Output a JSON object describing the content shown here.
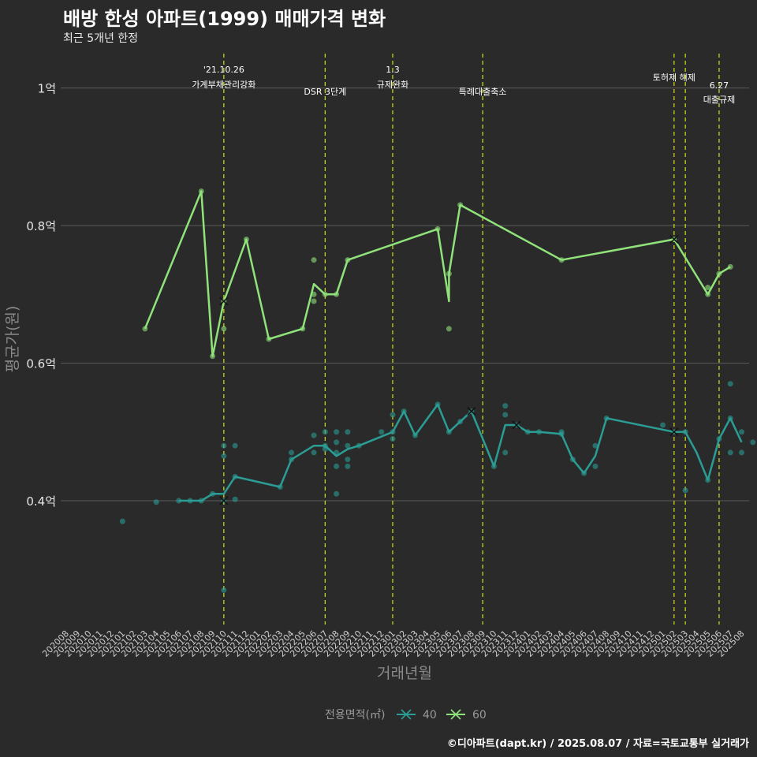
{
  "header": {
    "title": "배방 한성 아파트(1999) 매매가격 변화",
    "subtitle": "최근 5개년 한정"
  },
  "footer": {
    "caption": "©디아파트(dapt.kr) / 2025.08.07 / 자료=국토교통부 실거래가"
  },
  "colors": {
    "background": "#2b2a2b",
    "grid": "#5a5a5a",
    "event_line": "#d4e01a",
    "series_40": "#2a9d94",
    "series_60": "#8fe37a"
  },
  "chart_data": {
    "type": "line",
    "xlabel": "거래년월",
    "ylabel": "평균가(원)",
    "ylim": [
      0.22,
      1.05
    ],
    "grid": true,
    "legend_position": "bottom",
    "legend_title": "전용면적(㎡)",
    "y_ticks": [
      {
        "value": 0.4,
        "label": "0.4억"
      },
      {
        "value": 0.6,
        "label": "0.6억"
      },
      {
        "value": 0.8,
        "label": "0.8억"
      },
      {
        "value": 1.0,
        "label": "1억"
      }
    ],
    "x_start": "2020-08",
    "x_months": [
      "202008",
      "202009",
      "202010",
      "202011",
      "202012",
      "202101",
      "202102",
      "202103",
      "202104",
      "202105",
      "202106",
      "202107",
      "202108",
      "202109",
      "202110",
      "202111",
      "202112",
      "202201",
      "202202",
      "202203",
      "202204",
      "202205",
      "202206",
      "202207",
      "202208",
      "202209",
      "202210",
      "202211",
      "202212",
      "202301",
      "202302",
      "202303",
      "202304",
      "202305",
      "202306",
      "202307",
      "202308",
      "202309",
      "202310",
      "202311",
      "202312",
      "202401",
      "202402",
      "202403",
      "202404",
      "202405",
      "202406",
      "202407",
      "202408",
      "202409",
      "202410",
      "202411",
      "202412",
      "202501",
      "202502",
      "202503",
      "202504",
      "202505",
      "202506",
      "202507",
      "202508"
    ],
    "events": [
      {
        "month": "202110",
        "label": "'21.10.26\n가계부채관리강화",
        "level": 0
      },
      {
        "month": "202207",
        "label": "DSR 3단계",
        "level": 1
      },
      {
        "month": "202301",
        "label": "1.3\n규제완화",
        "level": 0
      },
      {
        "month": "202309",
        "label": "특례대출축소",
        "level": 1
      },
      {
        "month": "202502",
        "label": "토허제 해제",
        "level": 0
      },
      {
        "month": "202503",
        "label": "",
        "level": 0
      },
      {
        "month": "202506",
        "label": "6.27\n대출규제",
        "level": 2
      }
    ],
    "series": [
      {
        "name": "40",
        "color": "#2a9d94",
        "line": [
          [
            "202106",
            0.4
          ],
          [
            "202107",
            0.4
          ],
          [
            "202108",
            0.4
          ],
          [
            "202109",
            0.41
          ],
          [
            "202110",
            0.41
          ],
          [
            "202111",
            0.435
          ],
          [
            "202203",
            0.42
          ],
          [
            "202204",
            0.46
          ],
          [
            "202206",
            0.48
          ],
          [
            "202207",
            0.48
          ],
          [
            "202208",
            0.465
          ],
          [
            "202209",
            0.475
          ],
          [
            "202210",
            0.48
          ],
          [
            "202301",
            0.5
          ],
          [
            "202302",
            0.53
          ],
          [
            "202303",
            0.495
          ],
          [
            "202305",
            0.54
          ],
          [
            "202306",
            0.5
          ],
          [
            "202307",
            0.515
          ],
          [
            "202308",
            0.53
          ],
          [
            "202310",
            0.45
          ],
          [
            "202311",
            0.51
          ],
          [
            "202312",
            0.51
          ],
          [
            "202401",
            0.5
          ],
          [
            "202402",
            0.5
          ],
          [
            "202404",
            0.497
          ],
          [
            "202405",
            0.46
          ],
          [
            "202406",
            0.44
          ],
          [
            "202407",
            0.465
          ],
          [
            "202408",
            0.52
          ],
          [
            "202502",
            0.5
          ],
          [
            "202503",
            0.5
          ],
          [
            "202504",
            0.47
          ],
          [
            "202505",
            0.43
          ],
          [
            "202506",
            0.49
          ],
          [
            "202507",
            0.52
          ],
          [
            "202508",
            0.485
          ]
        ],
        "points": [
          [
            "202101",
            0.37
          ],
          [
            "202104",
            0.398
          ],
          [
            "202106",
            0.4
          ],
          [
            "202107",
            0.4
          ],
          [
            "202108",
            0.4
          ],
          [
            "202109",
            0.41
          ],
          [
            "202110",
            0.48
          ],
          [
            "202110",
            0.465
          ],
          [
            "202110",
            0.4
          ],
          [
            "202110",
            0.27
          ],
          [
            "202111",
            0.48
          ],
          [
            "202111",
            0.435
          ],
          [
            "202111",
            0.402
          ],
          [
            "202203",
            0.42
          ],
          [
            "202204",
            0.47
          ],
          [
            "202204",
            0.46
          ],
          [
            "202206",
            0.495
          ],
          [
            "202206",
            0.47
          ],
          [
            "202207",
            0.5
          ],
          [
            "202207",
            0.475
          ],
          [
            "202207",
            0.48
          ],
          [
            "202208",
            0.5
          ],
          [
            "202208",
            0.485
          ],
          [
            "202208",
            0.47
          ],
          [
            "202208",
            0.45
          ],
          [
            "202208",
            0.41
          ],
          [
            "202209",
            0.5
          ],
          [
            "202209",
            0.48
          ],
          [
            "202209",
            0.46
          ],
          [
            "202209",
            0.45
          ],
          [
            "202210",
            0.48
          ],
          [
            "202212",
            0.5
          ],
          [
            "202301",
            0.525
          ],
          [
            "202301",
            0.5
          ],
          [
            "202301",
            0.49
          ],
          [
            "202302",
            0.53
          ],
          [
            "202303",
            0.495
          ],
          [
            "202305",
            0.54
          ],
          [
            "202306",
            0.5
          ],
          [
            "202307",
            0.515
          ],
          [
            "202308",
            0.53
          ],
          [
            "202310",
            0.45
          ],
          [
            "202311",
            0.538
          ],
          [
            "202311",
            0.525
          ],
          [
            "202311",
            0.47
          ],
          [
            "202312",
            0.51
          ],
          [
            "202401",
            0.5
          ],
          [
            "202402",
            0.5
          ],
          [
            "202404",
            0.5
          ],
          [
            "202404",
            0.497
          ],
          [
            "202405",
            0.46
          ],
          [
            "202406",
            0.44
          ],
          [
            "202407",
            0.48
          ],
          [
            "202407",
            0.45
          ],
          [
            "202408",
            0.52
          ],
          [
            "202501",
            0.51
          ],
          [
            "202502",
            0.5
          ],
          [
            "202503",
            0.5
          ],
          [
            "202503",
            0.415
          ],
          [
            "202505",
            0.43
          ],
          [
            "202506",
            0.49
          ],
          [
            "202507",
            0.57
          ],
          [
            "202507",
            0.52
          ],
          [
            "202507",
            0.47
          ],
          [
            "202508",
            0.5
          ],
          [
            "202508",
            0.47
          ],
          [
            "202509",
            0.485
          ]
        ],
        "crosses": [
          [
            "202110",
            0.4
          ],
          [
            "202308",
            0.53
          ],
          [
            "202312",
            0.51
          ],
          [
            "202502",
            0.5
          ]
        ]
      },
      {
        "name": "60",
        "color": "#8fe37a",
        "line": [
          [
            "202103",
            0.65
          ],
          [
            "202108",
            0.85
          ],
          [
            "202109",
            0.61
          ],
          [
            "202110",
            0.69
          ],
          [
            "202112",
            0.78
          ],
          [
            "202202",
            0.635
          ],
          [
            "202205",
            0.65
          ],
          [
            "202206",
            0.715
          ],
          [
            "202207",
            0.7
          ],
          [
            "202208",
            0.7
          ],
          [
            "202209",
            0.75
          ],
          [
            "202305",
            0.795
          ],
          [
            "202306",
            0.69
          ],
          [
            "202306",
            0.73
          ],
          [
            "202307",
            0.83
          ],
          [
            "202404",
            0.75
          ],
          [
            "202502",
            0.78
          ],
          [
            "202505",
            0.7
          ],
          [
            "202506",
            0.73
          ],
          [
            "202507",
            0.74
          ]
        ],
        "points": [
          [
            "202103",
            0.65
          ],
          [
            "202108",
            0.85
          ],
          [
            "202109",
            0.61
          ],
          [
            "202110",
            0.69
          ],
          [
            "202110",
            0.65
          ],
          [
            "202112",
            0.78
          ],
          [
            "202202",
            0.635
          ],
          [
            "202205",
            0.65
          ],
          [
            "202206",
            0.75
          ],
          [
            "202206",
            0.7
          ],
          [
            "202206",
            0.69
          ],
          [
            "202207",
            0.7
          ],
          [
            "202208",
            0.7
          ],
          [
            "202209",
            0.75
          ],
          [
            "202305",
            0.795
          ],
          [
            "202306",
            0.73
          ],
          [
            "202306",
            0.65
          ],
          [
            "202307",
            0.83
          ],
          [
            "202404",
            0.75
          ],
          [
            "202502",
            0.78
          ],
          [
            "202505",
            0.71
          ],
          [
            "202505",
            0.7
          ],
          [
            "202506",
            0.73
          ],
          [
            "202507",
            0.74
          ]
        ],
        "crosses": [
          [
            "202110",
            0.69
          ],
          [
            "202502",
            0.78
          ]
        ]
      }
    ]
  }
}
